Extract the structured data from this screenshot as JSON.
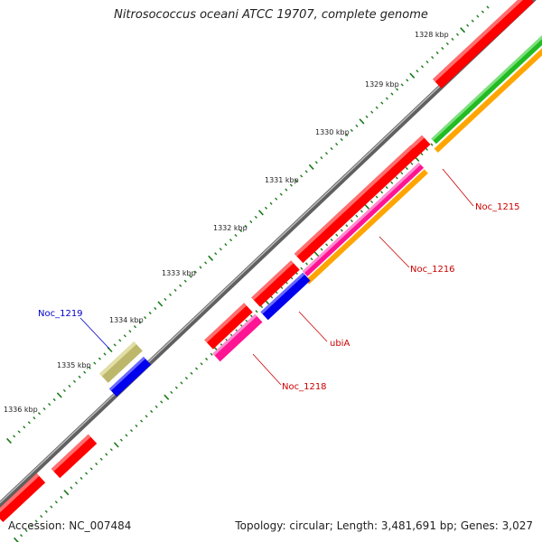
{
  "title": "Nitrosococcus oceani ATCC 19707, complete genome",
  "footer": {
    "accession": "Accession: NC_007484",
    "summary": "Topology: circular; Length: 3,481,691 bp; Genes: 3,027"
  },
  "ticks": [
    "1328 kbp",
    "1329 kbp",
    "1330 kbp",
    "1331 kbp",
    "1332 kbp",
    "1333 kbp",
    "1334 kbp",
    "1335 kbp",
    "1336 kbp"
  ],
  "gene_labels": {
    "noc_1215": "Noc_1215",
    "noc_1216": "Noc_1216",
    "ubia": "ubiA",
    "noc_1218": "Noc_1218",
    "noc_1219": "Noc_1219"
  },
  "colors": {
    "backbone": "#808080",
    "cds": "#ff0000",
    "pink": "#ff1493",
    "orange": "#ffa500",
    "green": "#22bb22",
    "blue": "#0000ee",
    "khaki": "#bdb76b",
    "tick": "#1a7a1a",
    "label_red": "#cc0000",
    "label_blue": "#0000cc"
  }
}
